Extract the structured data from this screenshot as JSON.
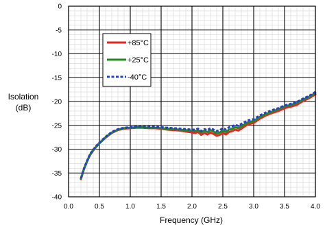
{
  "chart_data": {
    "type": "line",
    "title": "",
    "xlabel": "Frequency (GHz)",
    "ylabel_lines": [
      "Isolation",
      "(dB)"
    ],
    "xlim": [
      0,
      4
    ],
    "ylim": [
      -40,
      0
    ],
    "xticks": [
      0,
      0.5,
      1,
      1.5,
      2,
      2.5,
      3,
      3.5,
      4
    ],
    "xtick_labels": [
      "0.0",
      "0.5",
      "1.0",
      "1.5",
      "2.0",
      "2.5",
      "3.0",
      "3.5",
      "4.0"
    ],
    "yticks": [
      0,
      -5,
      -10,
      -15,
      -20,
      -25,
      -30,
      -35,
      -40
    ],
    "ytick_labels": [
      "0",
      "-5",
      "-10",
      "-15",
      "-20",
      "-25",
      "-30",
      "-35",
      "-40"
    ],
    "x_minor_step": 0.1,
    "y_minor_step": 1,
    "grid": true,
    "legend_position": "top-left",
    "series": [
      {
        "name": "+85°C",
        "color": "#e8251f",
        "style": "solid",
        "x": [
          0.2,
          0.25,
          0.3,
          0.35,
          0.4,
          0.45,
          0.5,
          0.6,
          0.7,
          0.8,
          0.9,
          1.0,
          1.1,
          1.2,
          1.3,
          1.4,
          1.5,
          1.6,
          1.7,
          1.8,
          1.9,
          2.0,
          2.05,
          2.1,
          2.15,
          2.2,
          2.25,
          2.3,
          2.35,
          2.4,
          2.45,
          2.5,
          2.55,
          2.6,
          2.65,
          2.7,
          2.75,
          2.8,
          2.9,
          3.0,
          3.1,
          3.2,
          3.3,
          3.4,
          3.5,
          3.6,
          3.7,
          3.8,
          3.9,
          4.0
        ],
        "y": [
          -36.3,
          -34.2,
          -32.6,
          -31.2,
          -30.3,
          -29.5,
          -28.8,
          -27.6,
          -26.6,
          -26.0,
          -25.7,
          -25.6,
          -25.5,
          -25.5,
          -25.6,
          -25.6,
          -25.7,
          -25.9,
          -26.0,
          -26.1,
          -26.3,
          -26.5,
          -26.6,
          -26.4,
          -27.0,
          -26.6,
          -26.9,
          -26.5,
          -26.8,
          -27.2,
          -27.0,
          -26.6,
          -26.9,
          -26.4,
          -26.2,
          -25.9,
          -26.1,
          -25.7,
          -24.8,
          -24.5,
          -23.6,
          -22.9,
          -22.4,
          -22.0,
          -21.4,
          -21.1,
          -20.7,
          -19.9,
          -19.3,
          -18.5
        ]
      },
      {
        "name": "+25°C",
        "color": "#1e8a1e",
        "style": "solid",
        "x": [
          0.2,
          0.25,
          0.3,
          0.35,
          0.4,
          0.45,
          0.5,
          0.6,
          0.7,
          0.8,
          0.9,
          1.0,
          1.1,
          1.2,
          1.3,
          1.4,
          1.5,
          1.6,
          1.7,
          1.8,
          1.9,
          2.0,
          2.05,
          2.1,
          2.15,
          2.2,
          2.25,
          2.3,
          2.35,
          2.4,
          2.45,
          2.5,
          2.55,
          2.6,
          2.65,
          2.7,
          2.75,
          2.8,
          2.9,
          3.0,
          3.1,
          3.2,
          3.3,
          3.4,
          3.5,
          3.6,
          3.7,
          3.8,
          3.9,
          4.0
        ],
        "y": [
          -36.2,
          -34.1,
          -32.5,
          -31.1,
          -30.2,
          -29.4,
          -28.7,
          -27.5,
          -26.5,
          -25.9,
          -25.6,
          -25.5,
          -25.4,
          -25.4,
          -25.5,
          -25.5,
          -25.6,
          -25.7,
          -25.8,
          -25.9,
          -26.0,
          -26.1,
          -26.2,
          -26.0,
          -26.5,
          -26.1,
          -26.4,
          -26.0,
          -26.3,
          -26.7,
          -26.5,
          -26.1,
          -26.4,
          -25.9,
          -25.7,
          -25.4,
          -25.6,
          -25.2,
          -24.4,
          -24.1,
          -23.2,
          -22.6,
          -22.1,
          -21.6,
          -21.0,
          -20.7,
          -20.3,
          -19.6,
          -19.0,
          -18.2
        ]
      },
      {
        "name": "-40°C",
        "color": "#1f3fd6",
        "style": "dashed",
        "x": [
          0.2,
          0.25,
          0.3,
          0.35,
          0.4,
          0.45,
          0.5,
          0.6,
          0.7,
          0.8,
          0.9,
          1.0,
          1.1,
          1.2,
          1.3,
          1.4,
          1.5,
          1.6,
          1.7,
          1.8,
          1.9,
          2.0,
          2.05,
          2.1,
          2.15,
          2.2,
          2.25,
          2.3,
          2.35,
          2.4,
          2.45,
          2.5,
          2.55,
          2.6,
          2.65,
          2.7,
          2.75,
          2.8,
          2.9,
          3.0,
          3.1,
          3.2,
          3.3,
          3.4,
          3.5,
          3.6,
          3.7,
          3.8,
          3.9,
          4.0
        ],
        "y": [
          -36.1,
          -34.0,
          -32.4,
          -31.0,
          -30.1,
          -29.3,
          -28.6,
          -27.4,
          -26.4,
          -25.8,
          -25.5,
          -25.4,
          -25.3,
          -25.3,
          -25.3,
          -25.3,
          -25.4,
          -25.5,
          -25.6,
          -25.7,
          -25.8,
          -25.9,
          -25.9,
          -25.7,
          -26.2,
          -25.8,
          -26.0,
          -25.6,
          -25.9,
          -26.2,
          -26.0,
          -25.6,
          -25.9,
          -25.4,
          -25.2,
          -24.9,
          -25.1,
          -24.7,
          -24.0,
          -23.7,
          -22.9,
          -22.3,
          -21.8,
          -21.4,
          -20.8,
          -20.5,
          -20.1,
          -19.4,
          -18.8,
          -18.0
        ]
      }
    ]
  }
}
